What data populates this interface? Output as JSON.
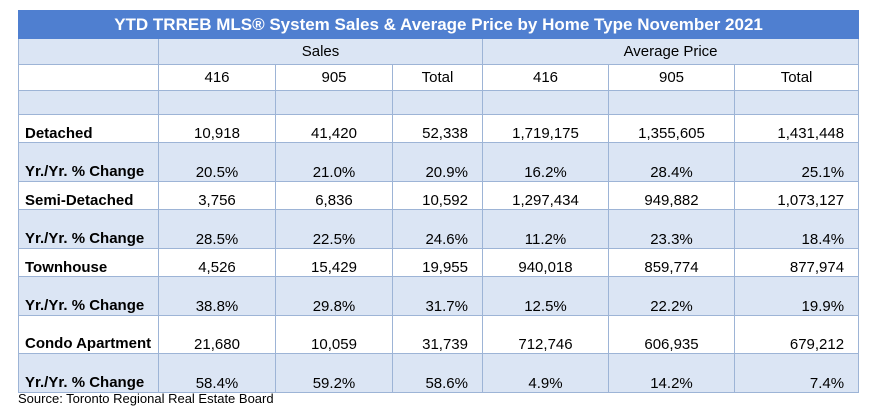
{
  "title": "YTD TRREB MLS® System Sales & Average Price by Home Type November 2021",
  "groups": {
    "sales": "Sales",
    "avg_price": "Average Price"
  },
  "columns": [
    "416",
    "905",
    "Total",
    "416",
    "905",
    "Total"
  ],
  "rows": [
    {
      "label": "Detached",
      "values": [
        "10,918",
        "41,420",
        "52,338",
        "1,719,175",
        "1,355,605",
        "1,431,448"
      ]
    },
    {
      "label": "Yr./Yr. % Change",
      "values": [
        "20.5%",
        "21.0%",
        "20.9%",
        "16.2%",
        "28.4%",
        "25.1%"
      ]
    },
    {
      "label": "Semi-Detached",
      "values": [
        "3,756",
        "6,836",
        "10,592",
        "1,297,434",
        "949,882",
        "1,073,127"
      ]
    },
    {
      "label": "Yr./Yr. % Change",
      "values": [
        "28.5%",
        "22.5%",
        "24.6%",
        "11.2%",
        "23.3%",
        "18.4%"
      ]
    },
    {
      "label": "Townhouse",
      "values": [
        "4,526",
        "15,429",
        "19,955",
        "940,018",
        "859,774",
        "877,974"
      ]
    },
    {
      "label": "Yr./Yr. % Change",
      "values": [
        "38.8%",
        "29.8%",
        "31.7%",
        "12.5%",
        "22.2%",
        "19.9%"
      ]
    },
    {
      "label": "Condo Apartment",
      "values": [
        "21,680",
        "10,059",
        "31,739",
        "712,746",
        "606,935",
        "679,212"
      ]
    },
    {
      "label": "Yr./Yr. % Change",
      "values": [
        "58.4%",
        "59.2%",
        "58.6%",
        "4.9%",
        "14.2%",
        "7.4%"
      ]
    }
  ],
  "source": "Source: Toronto Regional Real Estate Board"
}
